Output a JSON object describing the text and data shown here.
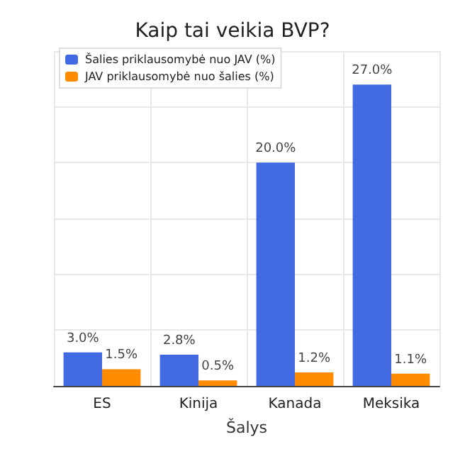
{
  "chart_data": {
    "type": "bar",
    "title": "Kaip tai veikia BVP?",
    "xlabel": "Šalys",
    "categories": [
      "ES",
      "Kinija",
      "Kanada",
      "Meksika"
    ],
    "series": [
      {
        "name": "Šalies priklausomybė nuo JAV (%)",
        "color": "#4169e1",
        "values": [
          3.0,
          2.8,
          20.0,
          27.0
        ],
        "value_labels": [
          "3.0%",
          "2.8%",
          "20.0%",
          "27.0%"
        ]
      },
      {
        "name": "JAV priklausomybė nuo šalies (%)",
        "color": "#ff8c00",
        "values": [
          1.5,
          0.5,
          1.2,
          1.1
        ],
        "value_labels": [
          "1.5%",
          "0.5%",
          "1.2%",
          "1.1%"
        ]
      }
    ],
    "tick_labels": "x",
    "grid": true,
    "legend": "top left"
  }
}
